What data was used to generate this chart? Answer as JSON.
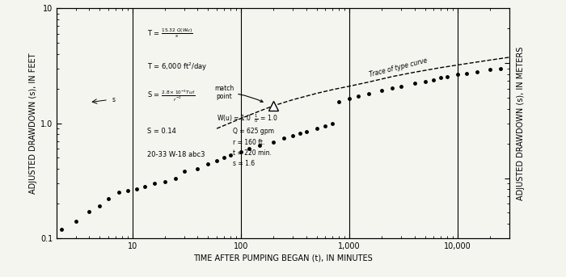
{
  "xlabel": "TIME AFTER PUMPING BEGAN (t), IN MINUTES",
  "ylabel_left": "ADJUSTED DRAWDOWN (s), IN FEET",
  "ylabel_right": "ADJUSTED DRAWDOWN (s), IN METERS",
  "xlim": [
    2,
    30000
  ],
  "ylim_left": [
    0.1,
    10
  ],
  "ylim_right": [
    0.03,
    3.0
  ],
  "data_points": [
    [
      2.2,
      0.12
    ],
    [
      3.0,
      0.14
    ],
    [
      4.0,
      0.17
    ],
    [
      5.0,
      0.19
    ],
    [
      6.0,
      0.22
    ],
    [
      7.5,
      0.25
    ],
    [
      9.0,
      0.26
    ],
    [
      11,
      0.27
    ],
    [
      13,
      0.28
    ],
    [
      16,
      0.3
    ],
    [
      20,
      0.31
    ],
    [
      25,
      0.33
    ],
    [
      30,
      0.38
    ],
    [
      40,
      0.4
    ],
    [
      50,
      0.44
    ],
    [
      60,
      0.47
    ],
    [
      70,
      0.5
    ],
    [
      80,
      0.53
    ],
    [
      100,
      0.56
    ],
    [
      120,
      0.6
    ],
    [
      150,
      0.64
    ],
    [
      200,
      0.69
    ],
    [
      250,
      0.74
    ],
    [
      300,
      0.78
    ],
    [
      350,
      0.82
    ],
    [
      400,
      0.85
    ],
    [
      500,
      0.9
    ],
    [
      600,
      0.95
    ],
    [
      700,
      1.0
    ],
    [
      800,
      1.55
    ],
    [
      1000,
      1.65
    ],
    [
      1200,
      1.72
    ],
    [
      1500,
      1.8
    ],
    [
      2000,
      1.92
    ],
    [
      2500,
      2.02
    ],
    [
      3000,
      2.1
    ],
    [
      4000,
      2.22
    ],
    [
      5000,
      2.32
    ],
    [
      6000,
      2.4
    ],
    [
      7000,
      2.48
    ],
    [
      8000,
      2.55
    ],
    [
      10000,
      2.65
    ],
    [
      12000,
      2.73
    ],
    [
      15000,
      2.82
    ],
    [
      20000,
      2.93
    ],
    [
      25000,
      3.0
    ]
  ],
  "type_curve_x": [
    60,
    100,
    150,
    200,
    300,
    500,
    700,
    1000,
    1500,
    2500,
    4000,
    7000,
    12000,
    20000,
    30000
  ],
  "type_curve_y": [
    0.9,
    1.1,
    1.28,
    1.42,
    1.6,
    1.82,
    1.96,
    2.1,
    2.28,
    2.55,
    2.78,
    3.05,
    3.3,
    3.55,
    3.75
  ],
  "vlines": [
    10,
    100,
    1000,
    10000
  ],
  "match_point_x": 200,
  "match_point_y": 1.42,
  "background_color": "#f5f5f0",
  "dot_color": "#000000",
  "line_color": "#000000"
}
